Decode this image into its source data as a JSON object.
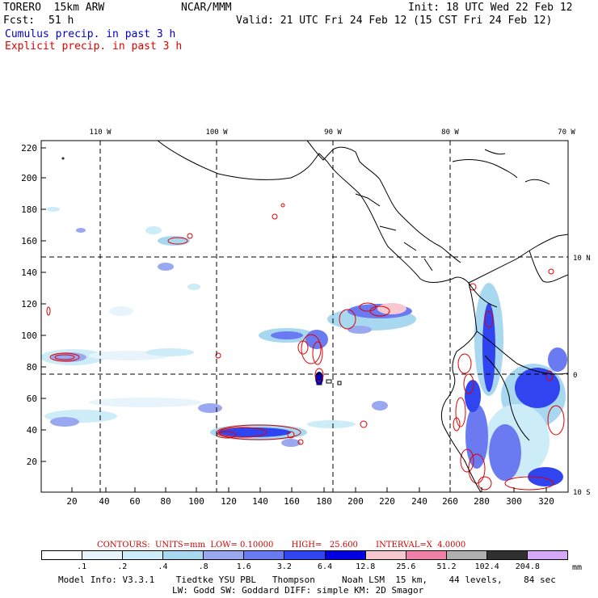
{
  "header": {
    "model": "TORERO  15km ARW",
    "org": "NCAR/MMM",
    "init": "Init: 18 UTC Wed 22 Feb 12",
    "fcst_label": "Fcst:",
    "fcst_value": "51 h",
    "valid": "Valid: 21 UTC Fri 24 Feb 12 (15 CST Fri 24 Feb 12)",
    "cumulus": "Cumulus precip. in past 3 h",
    "explicit": "Explicit precip. in past 3 h"
  },
  "map": {
    "top_lon_labels": [
      "110 W",
      "100 W",
      "90 W",
      "80 W",
      "70 W"
    ],
    "right_lat_labels": [
      "10 N",
      "0",
      "10 S"
    ],
    "left_grid_labels": [
      "220",
      "200",
      "180",
      "160",
      "140",
      "120",
      "100",
      "80",
      "60",
      "40",
      "20"
    ],
    "bottom_grid_labels": [
      "20",
      "40",
      "60",
      "80",
      "100",
      "120",
      "140",
      "160",
      "180",
      "200",
      "220",
      "240",
      "260",
      "280",
      "300",
      "320"
    ]
  },
  "contours": {
    "text": "CONTOURS:  UNITS=mm  LOW= 0.10000       HIGH=   25.600       INTERVAL=X  4.0000"
  },
  "colorbar": {
    "colors": [
      "#ffffff",
      "#e8f4fc",
      "#ccecf8",
      "#a8d8f0",
      "#9aa8f0",
      "#6a7af0",
      "#3044f0",
      "#0000e0",
      "#f8c8d0",
      "#f080a8",
      "#b0b0b0",
      "#303030",
      "#d8a8f8"
    ],
    "labels": [
      ".1",
      ".2",
      ".4",
      ".8",
      "1.6",
      "3.2",
      "6.4",
      "12.8",
      "25.6",
      "51.2",
      "102.4",
      "204.8"
    ],
    "units": "mm"
  },
  "footer": {
    "line1": "Model Info: V3.3.1    Tiedtke YSU PBL   Thompson     Noah LSM  15 km,    44 levels,    84 sec",
    "line2": "LW: Godd SW: Goddard DIFF: simple KM: 2D Smagor"
  },
  "colors": {
    "cumulus_text": "#0000c8",
    "explicit_text": "#e00000",
    "explicit_contour": "#e00000"
  }
}
